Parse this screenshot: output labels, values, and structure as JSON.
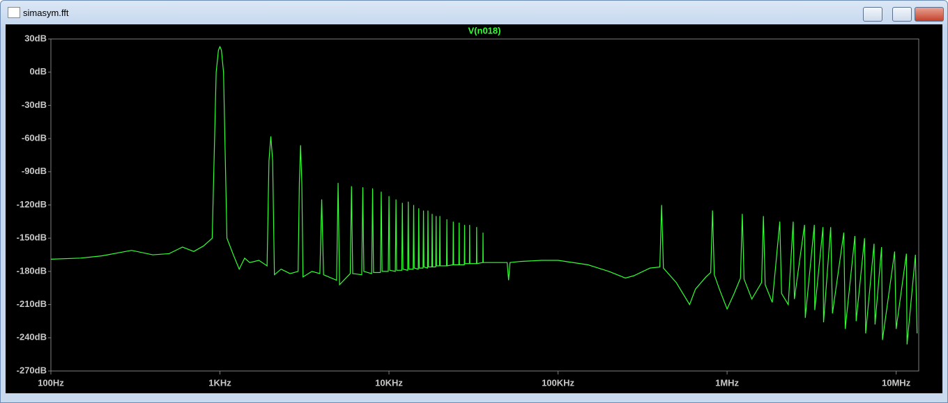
{
  "window": {
    "title": "simasym.fft"
  },
  "chart_data": {
    "type": "line",
    "xscale": "log",
    "grid": false,
    "xlim": [
      100,
      13600000
    ],
    "ylim": [
      -270,
      30
    ],
    "xticks": [
      {
        "value": 100,
        "label": "100Hz"
      },
      {
        "value": 1000,
        "label": "1KHz"
      },
      {
        "value": 10000,
        "label": "10KHz"
      },
      {
        "value": 100000,
        "label": "100KHz"
      },
      {
        "value": 1000000,
        "label": "1MHz"
      },
      {
        "value": 10000000,
        "label": "10MHz"
      }
    ],
    "yticks": [
      {
        "value": 30,
        "label": "30dB"
      },
      {
        "value": 0,
        "label": "0dB"
      },
      {
        "value": -30,
        "label": "-30dB"
      },
      {
        "value": -60,
        "label": "-60dB"
      },
      {
        "value": -90,
        "label": "-90dB"
      },
      {
        "value": -120,
        "label": "-120dB"
      },
      {
        "value": -150,
        "label": "-150dB"
      },
      {
        "value": -180,
        "label": "-180dB"
      },
      {
        "value": -210,
        "label": "-210dB"
      },
      {
        "value": -240,
        "label": "-240dB"
      },
      {
        "value": -270,
        "label": "-270dB"
      }
    ],
    "x": [
      100,
      150,
      200,
      300,
      400,
      500,
      600,
      700,
      800,
      900,
      950,
      980,
      1000,
      1020,
      1050,
      1100,
      1200,
      1300,
      1400,
      1500,
      1700,
      1900,
      1950,
      2000,
      2050,
      2100,
      2300,
      2600,
      2900,
      2950,
      3000,
      3050,
      3100,
      3500,
      3900,
      4000,
      4100,
      4900,
      5000,
      5100,
      5900,
      6000,
      6100,
      6900,
      7000,
      7100,
      7900,
      8000,
      8100,
      8900,
      9000,
      9100,
      9900,
      10000,
      10100,
      10900,
      11000,
      11100,
      11900,
      12000,
      12100,
      12900,
      13000,
      13100,
      13900,
      14000,
      14100,
      14900,
      15000,
      15100,
      15900,
      16000,
      16100,
      16900,
      17000,
      17100,
      17900,
      18000,
      18100,
      18900,
      19000,
      19100,
      19900,
      20000,
      20100,
      21900,
      22000,
      22100,
      23900,
      24000,
      24100,
      25900,
      26000,
      26100,
      27900,
      28000,
      28100,
      29900,
      30000,
      30100,
      32900,
      33000,
      33100,
      35900,
      36000,
      36100,
      40000,
      50000,
      51000,
      52000,
      60000,
      80000,
      100000,
      150000,
      200000,
      250000,
      280000,
      350000,
      400000,
      410000,
      420000,
      500000,
      600000,
      650000,
      750000,
      800000,
      820000,
      840000,
      900000,
      1000000,
      1100000,
      1200000,
      1230000,
      1260000,
      1400000,
      1600000,
      1640000,
      1680000,
      1850000,
      2050000,
      2100000,
      2300000,
      2460000,
      2500000,
      2870000,
      2900000,
      3280000,
      3300000,
      3690000,
      3720000,
      4100000,
      4200000,
      4900000,
      5000000,
      5700000,
      5800000,
      6500000,
      6600000,
      7400000,
      7500000,
      8200000,
      8300000,
      9800000,
      10000000,
      11500000,
      11600000,
      13000000,
      13300000
    ],
    "series": [
      {
        "name": "V(n018)",
        "color": "#33ff33",
        "values": [
          -169,
          -168,
          -166,
          -161,
          -165,
          -164,
          -158,
          -162,
          -157,
          -150,
          0,
          20,
          23,
          20,
          0,
          -150,
          -165,
          -178,
          -168,
          -172,
          -170,
          -175,
          -80,
          -58,
          -80,
          -183,
          -178,
          -182,
          -180,
          -100,
          -66,
          -100,
          -185,
          -180,
          -182,
          -115,
          -183,
          -188,
          -100,
          -192,
          -182,
          -103,
          -182,
          -183,
          -104,
          -180,
          -182,
          -105,
          -181,
          -181,
          -108,
          -180,
          -180,
          -112,
          -179,
          -180,
          -115,
          -179,
          -179,
          -118,
          -178,
          -179,
          -117,
          -178,
          -178,
          -120,
          -177,
          -178,
          -123,
          -177,
          -177,
          -125,
          -176,
          -177,
          -125,
          -176,
          -176,
          -128,
          -176,
          -176,
          -130,
          -175,
          -175,
          -130,
          -175,
          -175,
          -133,
          -175,
          -174,
          -135,
          -174,
          -174,
          -136,
          -174,
          -174,
          -138,
          -173,
          -173,
          -138,
          -173,
          -173,
          -140,
          -173,
          -172,
          -145,
          -172,
          -172,
          -172,
          -188,
          -172,
          -171,
          -170,
          -170,
          -174,
          -180,
          -186,
          -184,
          -177,
          -176,
          -120,
          -177,
          -190,
          -210,
          -196,
          -185,
          -181,
          -125,
          -183,
          -196,
          -214,
          -200,
          -186,
          -128,
          -187,
          -205,
          -190,
          -130,
          -192,
          -208,
          -135,
          -200,
          -210,
          -135,
          -205,
          -138,
          -222,
          -138,
          -215,
          -140,
          -226,
          -140,
          -218,
          -145,
          -232,
          -148,
          -225,
          -150,
          -236,
          -155,
          -228,
          -158,
          -242,
          -162,
          -232,
          -164,
          -246,
          -165,
          -236
        ]
      }
    ]
  }
}
